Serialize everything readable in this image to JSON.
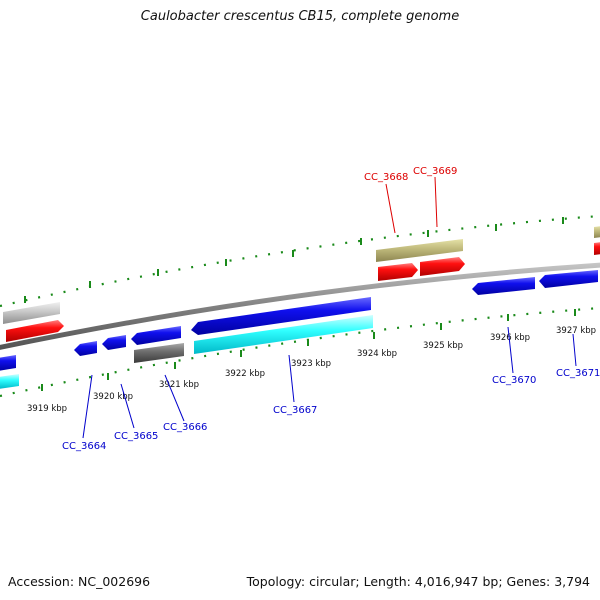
{
  "title": "Caulobacter crescentus CB15, complete genome",
  "footer": {
    "accession": "Accession: NC_002696",
    "summary": "Topology: circular; Length: 4,016,947 bp; Genes: 3,794"
  },
  "colors": {
    "backbone": "#8a8a8a",
    "tick": "#1a8a1a",
    "forward_label": "#dd0000",
    "reverse_label": "#0000cc"
  },
  "ticks": [
    {
      "label": "3919 kbp"
    },
    {
      "label": "3920 kbp"
    },
    {
      "label": "3921 kbp"
    },
    {
      "label": "3922 kbp"
    },
    {
      "label": "3923 kbp"
    },
    {
      "label": "3924 kbp"
    },
    {
      "label": "3925 kbp"
    },
    {
      "label": "3926 kbp"
    },
    {
      "label": "3927 kbp"
    }
  ],
  "gene_labels": [
    {
      "name": "CC_3664",
      "strand": "reverse"
    },
    {
      "name": "CC_3665",
      "strand": "reverse"
    },
    {
      "name": "CC_3666",
      "strand": "reverse"
    },
    {
      "name": "CC_3667",
      "strand": "reverse"
    },
    {
      "name": "CC_3668",
      "strand": "forward"
    },
    {
      "name": "CC_3669",
      "strand": "forward"
    },
    {
      "name": "CC_3670",
      "strand": "reverse"
    },
    {
      "name": "CC_3671",
      "strand": "reverse"
    }
  ]
}
